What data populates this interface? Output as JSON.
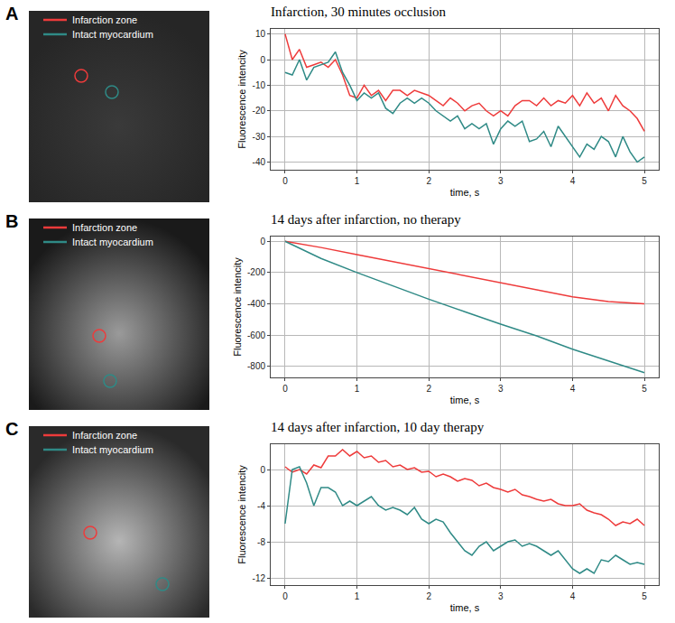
{
  "panels": [
    {
      "letter": "A"
    },
    {
      "letter": "B"
    },
    {
      "letter": "C"
    }
  ],
  "chart_data": [
    {
      "type": "line",
      "title": "Infarction, 30 minutes occlusion",
      "x_label": "time, s",
      "y_label": "Fluorescence intencity",
      "x": [
        0,
        0.1,
        0.2,
        0.3,
        0.4,
        0.5,
        0.6,
        0.7,
        0.8,
        0.9,
        1,
        1.1,
        1.2,
        1.3,
        1.4,
        1.5,
        1.6,
        1.7,
        1.8,
        1.9,
        2,
        2.1,
        2.2,
        2.3,
        2.4,
        2.5,
        2.6,
        2.7,
        2.8,
        2.9,
        3,
        3.1,
        3.2,
        3.3,
        3.4,
        3.5,
        3.6,
        3.7,
        3.8,
        3.9,
        4,
        4.1,
        4.2,
        4.3,
        4.4,
        4.5,
        4.6,
        4.7,
        4.8,
        4.9,
        5
      ],
      "series": [
        {
          "name": "Infarction zone",
          "color": "#ee3b3b",
          "values": [
            10,
            0,
            4,
            -3,
            -2,
            -1,
            -3,
            0,
            -6,
            -14,
            -15,
            -10,
            -14,
            -12,
            -16,
            -12,
            -12,
            -14,
            -12,
            -13,
            -14,
            -16,
            -18,
            -15,
            -17,
            -20,
            -18,
            -17,
            -20,
            -22,
            -20,
            -22,
            -18,
            -16,
            -16,
            -18,
            -15,
            -18,
            -16,
            -17,
            -14,
            -18,
            -13,
            -17,
            -15,
            -20,
            -14,
            -18,
            -20,
            -23,
            -28
          ]
        },
        {
          "name": "Intact myocardium",
          "color": "#2f8a86",
          "values": [
            -5,
            -6,
            0,
            -8,
            -3,
            -2,
            -1,
            3,
            -5,
            -10,
            -16,
            -13,
            -15,
            -13,
            -19,
            -21,
            -17,
            -15,
            -17,
            -15,
            -17,
            -20,
            -22,
            -24,
            -22,
            -27,
            -25,
            -27,
            -25,
            -33,
            -27,
            -24,
            -26,
            -24,
            -32,
            -31,
            -28,
            -34,
            -26,
            -30,
            -34,
            -38,
            -33,
            -35,
            -30,
            -32,
            -38,
            -30,
            -36,
            -40,
            -38
          ]
        }
      ],
      "xlim": [
        -0.2,
        5.2
      ],
      "xticks": [
        0,
        1,
        2,
        3,
        4,
        5
      ],
      "ylim": [
        -43,
        12
      ],
      "yticks": [
        10,
        0,
        -10,
        -20,
        -30,
        -40
      ],
      "grid": true
    },
    {
      "type": "line",
      "title": "14 days after infarction, no therapy",
      "x_label": "time, s",
      "y_label": "Fluorescence intencity",
      "x": [
        0,
        0.5,
        1,
        1.5,
        2,
        2.5,
        3,
        3.5,
        4,
        4.5,
        5
      ],
      "series": [
        {
          "name": "Infarction zone",
          "color": "#ee3b3b",
          "values": [
            0,
            -40,
            -85,
            -130,
            -175,
            -220,
            -265,
            -310,
            -355,
            -385,
            -400
          ]
        },
        {
          "name": "Intact myocardium",
          "color": "#2f8a86",
          "values": [
            0,
            -110,
            -200,
            -285,
            -370,
            -450,
            -530,
            -605,
            -690,
            -765,
            -840
          ]
        }
      ],
      "xlim": [
        -0.2,
        5.2
      ],
      "xticks": [
        0,
        1,
        2,
        3,
        4,
        5
      ],
      "ylim": [
        -870,
        30
      ],
      "yticks": [
        0,
        -200,
        -400,
        -600,
        -800
      ],
      "grid": true
    },
    {
      "type": "line",
      "title": "14 days after infarction, 10 day therapy",
      "x_label": "time, s",
      "y_label": "Fluorescence intencity",
      "x": [
        0,
        0.1,
        0.2,
        0.3,
        0.4,
        0.5,
        0.6,
        0.7,
        0.8,
        0.9,
        1,
        1.1,
        1.2,
        1.3,
        1.4,
        1.5,
        1.6,
        1.7,
        1.8,
        1.9,
        2,
        2.1,
        2.2,
        2.3,
        2.4,
        2.5,
        2.6,
        2.7,
        2.8,
        2.9,
        3,
        3.1,
        3.2,
        3.3,
        3.4,
        3.5,
        3.6,
        3.7,
        3.8,
        3.9,
        4,
        4.1,
        4.2,
        4.3,
        4.4,
        4.5,
        4.6,
        4.7,
        4.8,
        4.9,
        5
      ],
      "series": [
        {
          "name": "Infarction zone",
          "color": "#ee3b3b",
          "values": [
            0.3,
            -0.3,
            0,
            -0.5,
            0.5,
            0.2,
            1.5,
            1.5,
            2.2,
            1.5,
            2,
            1.3,
            1.5,
            0.8,
            1,
            0.3,
            0.5,
            0,
            0.2,
            -0.3,
            -0.2,
            -0.8,
            -0.5,
            -0.8,
            -1.3,
            -1,
            -1.2,
            -1.8,
            -1.5,
            -2,
            -2.2,
            -2.5,
            -2.2,
            -2.8,
            -3,
            -3.3,
            -3.5,
            -3.3,
            -3.8,
            -4,
            -4,
            -3.8,
            -4.5,
            -4.8,
            -5,
            -5.5,
            -6.2,
            -5.8,
            -6,
            -5.5,
            -6.2
          ]
        },
        {
          "name": "Intact myocardium",
          "color": "#2f8a86",
          "values": [
            -6,
            0,
            0.3,
            -1.5,
            -4,
            -2,
            -2,
            -2.5,
            -4,
            -3.5,
            -4,
            -3.5,
            -3,
            -4,
            -4.5,
            -4.2,
            -4.5,
            -5,
            -4.2,
            -5.5,
            -6,
            -5.5,
            -5.8,
            -7,
            -8,
            -9,
            -9.5,
            -8.5,
            -8,
            -9,
            -8.5,
            -8,
            -7.8,
            -8.5,
            -8.2,
            -8.5,
            -9,
            -9.5,
            -9,
            -10,
            -11,
            -11.5,
            -11,
            -11.5,
            -10,
            -10.2,
            -9.5,
            -10,
            -10.5,
            -10.3,
            -10.5
          ]
        }
      ],
      "xlim": [
        -0.2,
        5.2
      ],
      "xticks": [
        0,
        1,
        2,
        3,
        4,
        5
      ],
      "ylim": [
        -12.8,
        2.8
      ],
      "yticks": [
        0,
        -4,
        -8,
        -12
      ],
      "grid": true
    }
  ]
}
